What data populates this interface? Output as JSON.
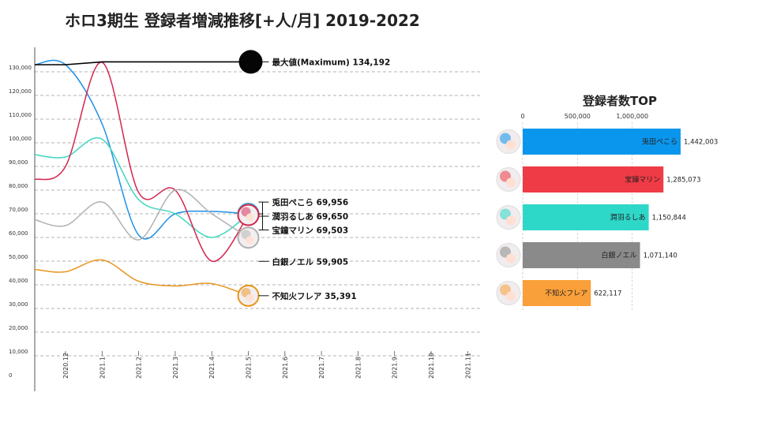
{
  "chart_data": [
    {
      "type": "line",
      "title": "ホロ3期生 登録者増減推移[+人/月] 2019-2022",
      "ylim": [
        0,
        140000
      ],
      "yticks": [
        0,
        10000,
        20000,
        30000,
        40000,
        50000,
        60000,
        70000,
        80000,
        90000,
        100000,
        110000,
        120000,
        130000
      ],
      "ytick_labels": [
        "0",
        "10,000",
        "20,000",
        "30,000",
        "40,000",
        "50,000",
        "60,000",
        "70,000",
        "80,000",
        "90,000",
        "100,000",
        "110,000",
        "120,000",
        "130,000"
      ],
      "x": [
        "2020.12",
        "2021.1",
        "2021.2",
        "2021.3",
        "2021.4",
        "2021.5",
        "2021.6",
        "2021.7",
        "2021.8",
        "2021.9",
        "2021.10",
        "2021.11"
      ],
      "grid": "horizontal dashed",
      "series": [
        {
          "name": "兎田ぺこら",
          "color": "#1e90e6",
          "points": [
            [
              -1,
              133000
            ],
            [
              0,
              133000
            ],
            [
              1,
              108000
            ],
            [
              2,
              61000
            ],
            [
              3,
              70000
            ],
            [
              4,
              71000
            ],
            [
              5,
              69956
            ]
          ],
          "label": "兎田ぺこら 69,956"
        },
        {
          "name": "潤羽るしあ",
          "color": "#3dd6c0",
          "points": [
            [
              -1,
              95000
            ],
            [
              0,
              94000
            ],
            [
              1,
              101500
            ],
            [
              2,
              76000
            ],
            [
              3,
              70000
            ],
            [
              4,
              60000
            ],
            [
              5,
              69650
            ]
          ],
          "label": "潤羽るしあ 69,650"
        },
        {
          "name": "宝鐘マリン",
          "color": "#d3264f",
          "points": [
            [
              -1,
              84500
            ],
            [
              0,
              90000
            ],
            [
              1,
              134000
            ],
            [
              2,
              79000
            ],
            [
              3,
              80000
            ],
            [
              4,
              50000
            ],
            [
              5,
              69503
            ]
          ],
          "label": "宝鐘マリン 69,503"
        },
        {
          "name": "白銀ノエル",
          "color": "#b0b0b0",
          "points": [
            [
              -1,
              67500
            ],
            [
              0,
              65000
            ],
            [
              1,
              75000
            ],
            [
              2,
              59000
            ],
            [
              3,
              80000
            ],
            [
              4,
              70000
            ],
            [
              5,
              59905
            ]
          ],
          "label": "白銀ノエル 59,905"
        },
        {
          "name": "不知火フレア",
          "color": "#e8961e",
          "points": [
            [
              -1,
              46500
            ],
            [
              0,
              45500
            ],
            [
              1,
              50500
            ],
            [
              2,
              41500
            ],
            [
              3,
              39500
            ],
            [
              4,
              40500
            ],
            [
              5,
              35391
            ]
          ],
          "label": "不知火フレア 35,391"
        },
        {
          "name": "最大値(Maximum)",
          "color": "#000000",
          "points": [
            [
              -1,
              133000
            ],
            [
              0,
              133000
            ],
            [
              1,
              134192
            ],
            [
              5,
              134192
            ]
          ],
          "label": "最大値(Maximum) 134,192"
        }
      ]
    },
    {
      "type": "bar",
      "orientation": "horizontal",
      "title": "登録者数TOP",
      "xlim": [
        0,
        1500000
      ],
      "xticks": [
        0,
        500000,
        1000000
      ],
      "xtick_labels": [
        "0",
        "500,000",
        "1,000,000"
      ],
      "categories": [
        "兎田ぺこら",
        "宝鐘マリン",
        "潤羽るしあ",
        "白銀ノエル",
        "不知火フレア"
      ],
      "values": [
        1442003,
        1285073,
        1150844,
        1071140,
        622117
      ],
      "value_labels": [
        "1,442,003",
        "1,285,073",
        "1,150,844",
        "1,071,140",
        "622,117"
      ],
      "colors": [
        "#0a96ec",
        "#ee3b45",
        "#2ed8c8",
        "#8a8a8a",
        "#f9a03a"
      ]
    }
  ],
  "page": {
    "title": "ホロ3期生 登録者増減推移[+人/月] 2019-2022"
  }
}
